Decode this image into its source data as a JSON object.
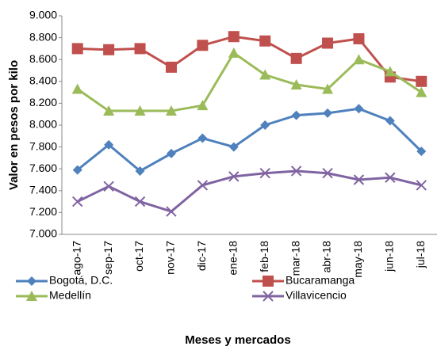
{
  "chart_data": {
    "type": "line",
    "y_axis_label": "Valor en pesos por kilo",
    "x_axis_label": "Meses y mercados",
    "categories": [
      "ago-17",
      "sep-17",
      "oct-17",
      "nov-17",
      "dic-17",
      "ene-18",
      "feb-18",
      "mar-18",
      "abr-18",
      "may-18",
      "jun-18",
      "jul-18"
    ],
    "ylim": [
      7000,
      9000
    ],
    "yticks": [
      {
        "value": 7000,
        "label": "7.000"
      },
      {
        "value": 7200,
        "label": "7.200"
      },
      {
        "value": 7400,
        "label": "7.400"
      },
      {
        "value": 7600,
        "label": "7.600"
      },
      {
        "value": 7800,
        "label": "7.800"
      },
      {
        "value": 8000,
        "label": "8.000"
      },
      {
        "value": 8200,
        "label": "8.200"
      },
      {
        "value": 8400,
        "label": "8.400"
      },
      {
        "value": 8600,
        "label": "8.600"
      },
      {
        "value": 8800,
        "label": "8.800"
      },
      {
        "value": 9000,
        "label": "9.000"
      }
    ],
    "series": [
      {
        "name": "Bogotá, D.C.",
        "color": "#4f81bd",
        "marker": "diamond",
        "values": [
          7590,
          7820,
          7580,
          7740,
          7880,
          7800,
          8000,
          8090,
          8110,
          8150,
          8040,
          7760
        ]
      },
      {
        "name": "Bucaramanga",
        "color": "#c0504d",
        "marker": "square",
        "values": [
          8700,
          8690,
          8700,
          8530,
          8730,
          8810,
          8770,
          8610,
          8750,
          8790,
          8440,
          8400
        ]
      },
      {
        "name": "Medellín",
        "color": "#9bbb59",
        "marker": "triangle",
        "values": [
          8330,
          8130,
          8130,
          8130,
          8180,
          8660,
          8460,
          8370,
          8330,
          8600,
          8490,
          8300
        ]
      },
      {
        "name": "Villavicencio",
        "color": "#8064a2",
        "marker": "x",
        "values": [
          7300,
          7440,
          7300,
          7210,
          7450,
          7530,
          7560,
          7580,
          7560,
          7500,
          7520,
          7450
        ]
      }
    ]
  }
}
